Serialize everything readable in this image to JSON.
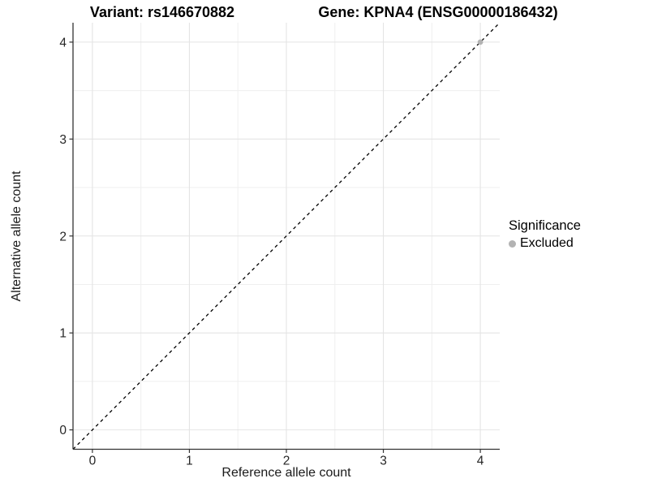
{
  "figure": {
    "title_left": "Variant: rs146670882",
    "title_right": "Gene: KPNA4 (ENSG00000186432)"
  },
  "chart_data": {
    "type": "scatter",
    "title": "Variant: rs146670882    Gene: KPNA4 (ENSG00000186432)",
    "xlabel": "Reference allele count",
    "ylabel": "Alternative allele count",
    "xlim": [
      -0.2,
      4.2
    ],
    "ylim": [
      -0.2,
      4.2
    ],
    "x_ticks": [
      0,
      1,
      2,
      3,
      4
    ],
    "y_ticks": [
      0,
      1,
      2,
      3,
      4
    ],
    "grid": {
      "minor_step": 0.5,
      "major_color": "#e4e4e4",
      "minor_color": "#efefef",
      "background": "#ffffff"
    },
    "axis_color": "#333333",
    "tick_label_color": "#262626",
    "reference_line": {
      "style": "dashed",
      "equation": "y = x",
      "color": "#000000"
    },
    "series": [
      {
        "name": "Excluded",
        "color": "#b3b3b3",
        "points": [
          [
            4,
            4
          ]
        ]
      }
    ],
    "legend": {
      "title": "Significance",
      "position": "right",
      "items": [
        {
          "label": "Excluded",
          "color": "#b3b3b3"
        }
      ]
    }
  }
}
